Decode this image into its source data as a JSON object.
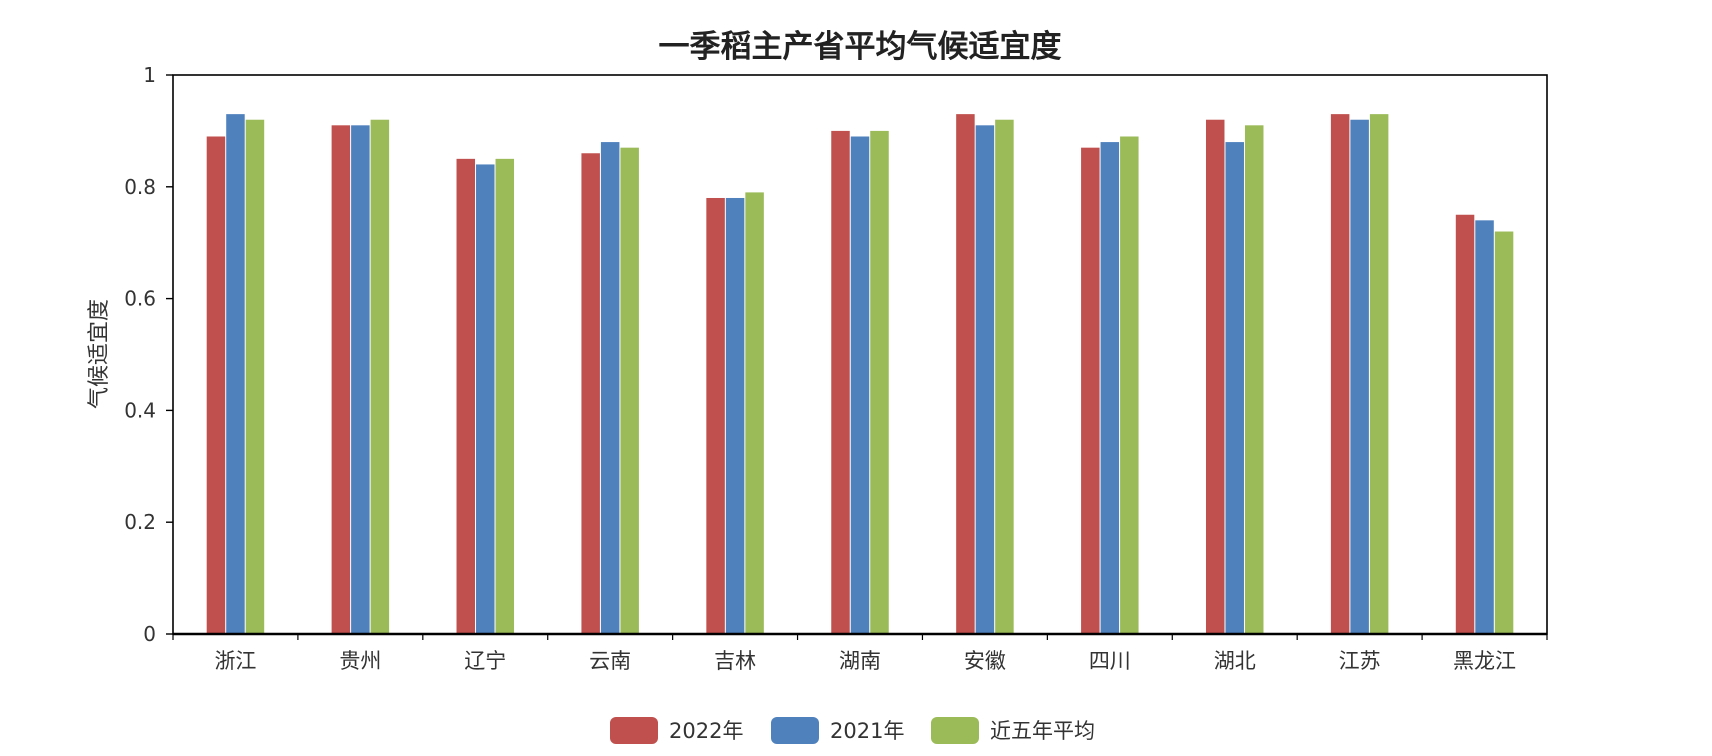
{
  "chart_data": {
    "type": "bar",
    "title": "一季稻主产省平均气候适宜度",
    "xlabel": "",
    "ylabel": "气候适宜度",
    "ylim": [
      0,
      1
    ],
    "yticks": [
      0,
      0.2,
      0.4,
      0.6,
      0.8,
      1
    ],
    "ytick_labels": [
      "0",
      "0.2",
      "0.4",
      "0.6",
      "0.8",
      "1"
    ],
    "grid": false,
    "legend_position": "bottom",
    "categories": [
      "浙江",
      "贵州",
      "辽宁",
      "云南",
      "吉林",
      "湖南",
      "安徽",
      "四川",
      "湖北",
      "江苏",
      "黑龙江"
    ],
    "series": [
      {
        "name": "2022年",
        "color": "#C0504D",
        "values": [
          0.89,
          0.91,
          0.85,
          0.86,
          0.78,
          0.9,
          0.93,
          0.87,
          0.92,
          0.93,
          0.75
        ]
      },
      {
        "name": "2021年",
        "color": "#4F81BD",
        "values": [
          0.93,
          0.91,
          0.84,
          0.88,
          0.78,
          0.89,
          0.91,
          0.88,
          0.88,
          0.92,
          0.74
        ]
      },
      {
        "name": "近五年平均",
        "color": "#9BBB59",
        "values": [
          0.92,
          0.92,
          0.85,
          0.87,
          0.79,
          0.9,
          0.92,
          0.89,
          0.91,
          0.93,
          0.72
        ]
      }
    ]
  }
}
